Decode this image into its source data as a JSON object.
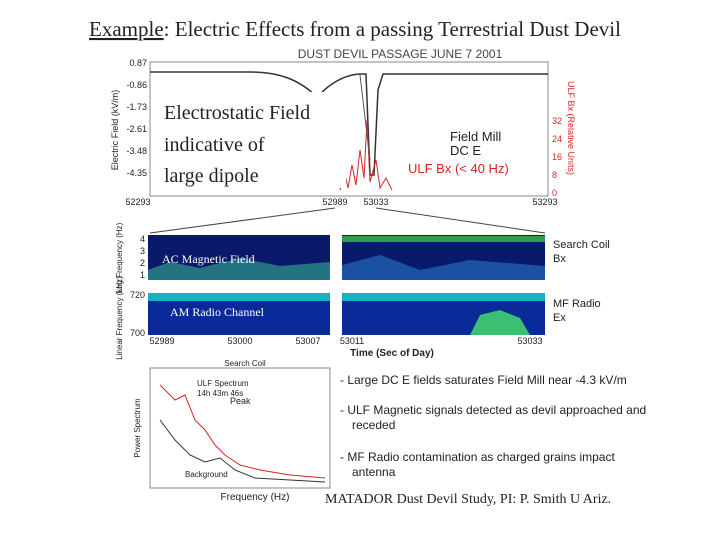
{
  "slide": {
    "title": {
      "lead": "Example",
      "rest": ": Electric Effects from a passing Terrestrial Dust Devil"
    },
    "top_plot": {
      "title": "DUST DEVIL PASSAGE   JUNE 7 2001",
      "ylabel": "Electric Field (kV/m)",
      "yticks": [
        "0.87",
        "-0.86",
        "-1.73",
        "-2.61",
        "-3.48",
        "-4.35"
      ],
      "y2label": "ULF Bx (Relative Units)",
      "y2ticks": [
        "32",
        "24",
        "16",
        "8",
        "0"
      ],
      "xticks": [
        "52293",
        "52989",
        "53033",
        "53293"
      ],
      "legend_mill": [
        "Field Mill",
        "DC E"
      ],
      "legend_ulf": "ULF Bx (< 40 Hz)",
      "callout": [
        "Electrostatic Field",
        "indicative of",
        "large dipole"
      ]
    },
    "spectrograms": {
      "log_ylabel": "Log Frequency (Hz)",
      "log_yticks": [
        "4",
        "3",
        "2",
        "1"
      ],
      "lin_ylabel": "Linear Frequency (kHz)",
      "lin_yticks": [
        "720",
        "700"
      ],
      "coil_label": [
        "Search Coil",
        "Bx"
      ],
      "radio_label": [
        "MF Radio",
        "Ex"
      ],
      "ac_callout": "AC Magnetic Field",
      "am_callout": "AM Radio Channel",
      "xticks": [
        "52989",
        "53000",
        "53007",
        "53011",
        "53033"
      ],
      "xlabel": "Time (Sec of Day)"
    },
    "spectrum_plot": {
      "title": "Search Coil",
      "ulf": [
        "ULF Spectrum",
        "14h 43m 46s"
      ],
      "peak": "Peak",
      "background": "Background",
      "ylabel": "Power Spectrum",
      "xlabel": "Frequency (Hz)"
    },
    "bullets": [
      [
        "- Large DC E fields saturates Field Mill near -4.3 kV/m"
      ],
      [
        "- ULF Magnetic signals detected as  devil approached and",
        "receded"
      ],
      [
        "- MF Radio contamination as charged grains impact",
        "antenna"
      ]
    ],
    "footer": "MATADOR Dust Devil Study, PI: P. Smith U Ariz."
  }
}
